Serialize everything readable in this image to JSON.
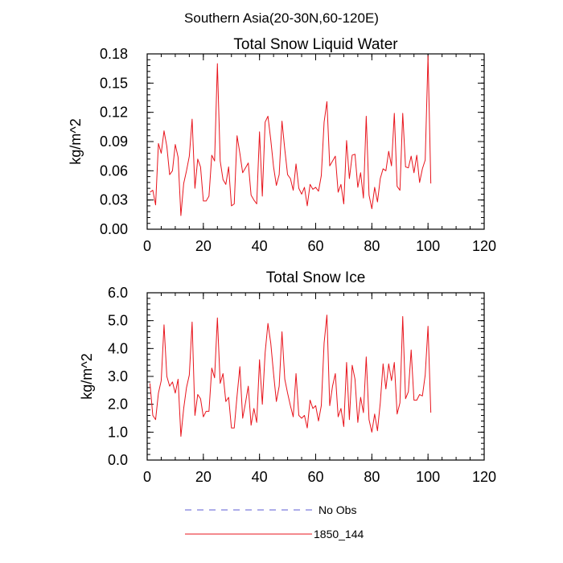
{
  "figure": {
    "title": "Southern Asia(20-30N,60-120E)"
  },
  "legend": {
    "entries": [
      {
        "label": "No Obs",
        "color": "#5b5bd6",
        "style": "dashed"
      },
      {
        "label": "1850_144",
        "color": "#e8141c",
        "style": "solid"
      }
    ]
  },
  "chart_data": [
    {
      "type": "line",
      "title": "Total Snow Liquid Water",
      "xlabel": "",
      "ylabel": "kg/m^2",
      "xlim": [
        0,
        120
      ],
      "ylim": [
        0,
        0.18
      ],
      "xticks": [
        0,
        20,
        40,
        60,
        80,
        100,
        120
      ],
      "yticks": [
        0,
        0.03,
        0.06,
        0.09,
        0.12,
        0.15,
        0.18
      ],
      "xtick_labels": [
        "0",
        "20",
        "40",
        "60",
        "80",
        "100",
        "120"
      ],
      "ytick_labels": [
        "0.00",
        "0.03",
        "0.06",
        "0.09",
        "0.12",
        "0.15",
        "0.18"
      ],
      "series": [
        {
          "name": "1850_144",
          "color": "#e8141c",
          "x_start": 1,
          "values": [
            0.038,
            0.04,
            0.025,
            0.088,
            0.078,
            0.101,
            0.085,
            0.056,
            0.06,
            0.087,
            0.074,
            0.014,
            0.047,
            0.06,
            0.075,
            0.113,
            0.042,
            0.072,
            0.064,
            0.029,
            0.029,
            0.034,
            0.076,
            0.07,
            0.17,
            0.07,
            0.051,
            0.046,
            0.064,
            0.024,
            0.026,
            0.096,
            0.078,
            0.058,
            0.063,
            0.068,
            0.035,
            0.03,
            0.026,
            0.1,
            0.034,
            0.11,
            0.116,
            0.092,
            0.064,
            0.045,
            0.056,
            0.111,
            0.082,
            0.056,
            0.052,
            0.04,
            0.067,
            0.042,
            0.036,
            0.043,
            0.024,
            0.046,
            0.041,
            0.043,
            0.039,
            0.055,
            0.11,
            0.131,
            0.065,
            0.07,
            0.075,
            0.038,
            0.046,
            0.026,
            0.091,
            0.052,
            0.076,
            0.077,
            0.043,
            0.058,
            0.032,
            0.116,
            0.035,
            0.021,
            0.043,
            0.028,
            0.052,
            0.062,
            0.06,
            0.08,
            0.065,
            0.119,
            0.044,
            0.04,
            0.119,
            0.064,
            0.063,
            0.075,
            0.058,
            0.076,
            0.048,
            0.062,
            0.071,
            0.178,
            0.047
          ]
        }
      ]
    },
    {
      "type": "line",
      "title": "Total Snow Ice",
      "xlabel": "",
      "ylabel": "kg/m^2",
      "xlim": [
        0,
        120
      ],
      "ylim": [
        0,
        6
      ],
      "xticks": [
        0,
        20,
        40,
        60,
        80,
        100,
        120
      ],
      "yticks": [
        0,
        1,
        2,
        3,
        4,
        5,
        6
      ],
      "xtick_labels": [
        "0",
        "20",
        "40",
        "60",
        "80",
        "100",
        "120"
      ],
      "ytick_labels": [
        "0.0",
        "1.0",
        "2.0",
        "3.0",
        "4.0",
        "5.0",
        "6.0"
      ],
      "series": [
        {
          "name": "1850_144",
          "color": "#e8141c",
          "x_start": 1,
          "values": [
            2.75,
            1.6,
            1.45,
            2.4,
            2.85,
            4.85,
            3.0,
            2.65,
            2.8,
            2.4,
            2.9,
            0.85,
            1.85,
            2.6,
            3.05,
            4.95,
            1.6,
            2.35,
            2.2,
            1.55,
            1.75,
            1.75,
            3.3,
            2.95,
            5.1,
            2.75,
            3.1,
            2.1,
            2.25,
            1.15,
            1.15,
            2.3,
            3.35,
            1.5,
            2.05,
            2.65,
            1.25,
            1.85,
            1.35,
            3.6,
            2.0,
            3.85,
            4.9,
            4.2,
            3.1,
            2.1,
            2.65,
            4.6,
            2.9,
            2.4,
            1.95,
            1.55,
            3.1,
            1.6,
            1.5,
            1.6,
            1.15,
            2.15,
            1.85,
            1.95,
            1.4,
            1.95,
            4.2,
            5.2,
            1.95,
            2.65,
            3.1,
            1.55,
            1.85,
            1.2,
            3.5,
            1.45,
            3.4,
            2.9,
            1.35,
            2.25,
            1.7,
            3.7,
            1.45,
            1.0,
            1.65,
            1.05,
            2.05,
            3.45,
            2.55,
            3.45,
            2.85,
            3.5,
            1.65,
            2.05,
            5.15,
            2.2,
            2.45,
            3.95,
            2.15,
            2.15,
            2.35,
            2.3,
            3.05,
            4.8,
            1.7
          ]
        }
      ]
    }
  ]
}
